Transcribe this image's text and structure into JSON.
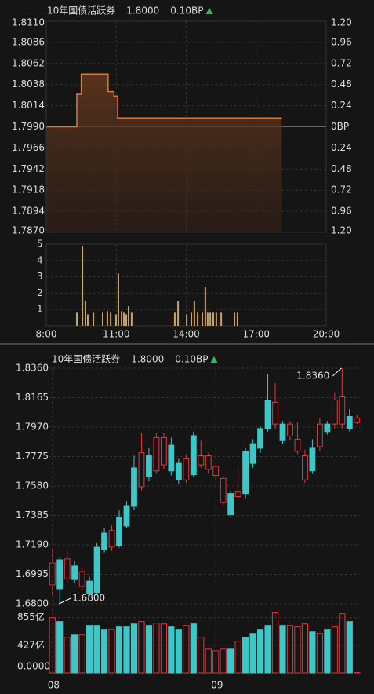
{
  "chart_data": [
    {
      "type": "line",
      "title": "10年国债活跃券",
      "price": "1.8000",
      "change": "0.10BP",
      "color": "#e0782c",
      "x": [
        8,
        9.31,
        9.31,
        9.5,
        9.5,
        10.65,
        10.65,
        10.9,
        10.9,
        11.06,
        11.06,
        18.1
      ],
      "values": [
        1.799,
        1.799,
        1.8027,
        1.8027,
        1.805,
        1.805,
        1.803,
        1.803,
        1.8025,
        1.8025,
        1.8,
        1.8
      ],
      "xlim": [
        8,
        20
      ],
      "ylim": [
        1.787,
        1.811
      ],
      "yticks": [
        {
          "value": 1.787,
          "label": "1.7870"
        },
        {
          "value": 1.7894,
          "label": "1.7894"
        },
        {
          "value": 1.7918,
          "label": "1.7918"
        },
        {
          "value": 1.7942,
          "label": "1.7942"
        },
        {
          "value": 1.7966,
          "label": "1.7966"
        },
        {
          "value": 1.799,
          "label": "1.7990"
        },
        {
          "value": 1.8014,
          "label": "1.8014"
        },
        {
          "value": 1.8038,
          "label": "1.8038"
        },
        {
          "value": 1.8062,
          "label": "1.8062"
        },
        {
          "value": 1.8086,
          "label": "1.8086"
        },
        {
          "value": 1.811,
          "label": "1.8110"
        }
      ],
      "y2lim": [
        -1.2,
        1.2
      ],
      "y2ticks": [
        {
          "value": -1.2,
          "label": "1.20"
        },
        {
          "value": -0.96,
          "label": "0.96"
        },
        {
          "value": -0.72,
          "label": "0.72"
        },
        {
          "value": -0.48,
          "label": "0.48"
        },
        {
          "value": -0.24,
          "label": "0.24"
        },
        {
          "value": 0,
          "label": "0BP"
        },
        {
          "value": 0.24,
          "label": "0.24"
        },
        {
          "value": 0.48,
          "label": "0.48"
        },
        {
          "value": 0.72,
          "label": "0.72"
        },
        {
          "value": 0.96,
          "label": "0.96"
        },
        {
          "value": 1.2,
          "label": "1.20"
        }
      ],
      "grid": true
    },
    {
      "type": "bar",
      "color": "#c9a46a",
      "x": [
        9.31,
        9.55,
        9.68,
        9.78,
        10.02,
        10.42,
        10.62,
        10.76,
        10.99,
        11.09,
        11.23,
        11.33,
        11.43,
        11.53,
        11.66,
        13.51,
        13.65,
        14.02,
        14.22,
        14.35,
        14.49,
        14.69,
        14.82,
        14.92,
        15.03,
        15.16,
        15.29,
        15.5,
        16.07,
        16.2
      ],
      "values": [
        0.8,
        4.9,
        1.5,
        0.7,
        0.8,
        0.8,
        0.9,
        0.8,
        0.7,
        3.2,
        0.9,
        0.8,
        0.7,
        1.2,
        0.8,
        0.8,
        1.5,
        0.7,
        0.8,
        1.5,
        0.8,
        0.8,
        2.4,
        0.8,
        0.8,
        0.8,
        0.8,
        0.8,
        0.8,
        0.8
      ],
      "xlim": [
        8,
        20
      ],
      "xticks": [
        {
          "value": 8,
          "label": "8:00"
        },
        {
          "value": 11,
          "label": "11:00"
        },
        {
          "value": 14,
          "label": "14:00"
        },
        {
          "value": 17,
          "label": "17:00"
        },
        {
          "value": 20,
          "label": "20:00"
        }
      ],
      "ylim": [
        0,
        5
      ],
      "yticks": [
        1,
        2,
        3,
        4,
        5
      ],
      "grid": true
    },
    {
      "type": "candlestick",
      "title": "10年国债活跃券",
      "price": "1.8000",
      "change": "0.10BP",
      "up_color": "#e8333a",
      "down_color": "#3cc8c8",
      "categories": [
        "08",
        null,
        null,
        null,
        null,
        null,
        null,
        null,
        null,
        null,
        null,
        null,
        null,
        null,
        null,
        null,
        null,
        null,
        null,
        null,
        null,
        null,
        "09",
        null,
        null,
        null,
        null,
        null,
        null,
        null,
        null,
        null,
        null,
        null,
        null,
        null,
        null,
        null,
        null,
        null,
        null,
        null
      ],
      "open": [
        1.6925,
        1.7091,
        1.6965,
        1.705,
        1.6914,
        1.695,
        1.7174,
        1.7268,
        1.7175,
        1.737,
        1.745,
        1.77,
        1.7575,
        1.778,
        1.768,
        1.772,
        1.785,
        1.773,
        1.762,
        1.7913,
        1.772,
        1.769,
        1.765,
        1.747,
        1.753,
        1.751,
        1.781,
        1.786,
        1.796,
        1.8145,
        1.799,
        1.799,
        1.791,
        1.781,
        1.762,
        1.783,
        1.784,
        1.799,
        1.799,
        1.799,
        1.804,
        1.8
      ],
      "high": [
        1.7159,
        1.711,
        1.715,
        1.708,
        1.704,
        1.698,
        1.72,
        1.73,
        1.732,
        1.742,
        1.748,
        1.778,
        1.793,
        1.783,
        1.793,
        1.793,
        1.79,
        1.776,
        1.779,
        1.794,
        1.788,
        1.78,
        1.772,
        1.765,
        1.755,
        1.77,
        1.783,
        1.789,
        1.798,
        1.832,
        1.826,
        1.801,
        1.801,
        1.8,
        1.782,
        1.789,
        1.803,
        1.801,
        1.82,
        1.836,
        1.809,
        1.805
      ],
      "low": [
        1.6847,
        1.68,
        1.694,
        1.694,
        1.689,
        1.685,
        1.686,
        1.714,
        1.715,
        1.717,
        1.73,
        1.742,
        1.755,
        1.761,
        1.766,
        1.769,
        1.765,
        1.759,
        1.76,
        1.764,
        1.77,
        1.766,
        1.762,
        1.745,
        1.737,
        1.749,
        1.75,
        1.77,
        1.78,
        1.794,
        1.796,
        1.786,
        1.788,
        1.779,
        1.76,
        1.766,
        1.781,
        1.792,
        1.796,
        1.796,
        1.794,
        1.799
      ],
      "close": [
        1.707,
        1.6899,
        1.7097,
        1.696,
        1.7013,
        1.687,
        1.6875,
        1.716,
        1.7285,
        1.7185,
        1.7315,
        1.7445,
        1.78,
        1.764,
        1.79,
        1.79,
        1.768,
        1.762,
        1.776,
        1.7655,
        1.778,
        1.778,
        1.771,
        1.763,
        1.739,
        1.754,
        1.753,
        1.773,
        1.783,
        1.796,
        1.8135,
        1.788,
        1.799,
        1.789,
        1.778,
        1.768,
        1.799,
        1.794,
        1.815,
        1.817,
        1.796,
        1.803
      ],
      "annotations": [
        {
          "text": "1.8360",
          "value": 1.836
        },
        {
          "text": "1.6800",
          "value": 1.68
        }
      ],
      "ylim": [
        1.68,
        1.836
      ],
      "yticks": [
        {
          "value": 1.68,
          "label": "1.6800"
        },
        {
          "value": 1.6995,
          "label": "1.6995"
        },
        {
          "value": 1.719,
          "label": "1.7190"
        },
        {
          "value": 1.7385,
          "label": "1.7385"
        },
        {
          "value": 1.758,
          "label": "1.7580"
        },
        {
          "value": 1.7775,
          "label": "1.7775"
        },
        {
          "value": 1.797,
          "label": "1.7970"
        },
        {
          "value": 1.8165,
          "label": "1.8165"
        },
        {
          "value": 1.836,
          "label": "1.8360"
        }
      ],
      "grid": true
    },
    {
      "type": "bar",
      "values": [
        855,
        794,
        550,
        586,
        586,
        733,
        733,
        672,
        672,
        709,
        709,
        757,
        794,
        733,
        770,
        757,
        709,
        672,
        733,
        757,
        550,
        367,
        342,
        367,
        367,
        489,
        550,
        611,
        672,
        733,
        930,
        733,
        733,
        709,
        757,
        635,
        611,
        672,
        709,
        915,
        794,
        5
      ],
      "ylim": [
        0,
        960
      ],
      "yticks": [
        {
          "value": 0,
          "label": "0.0000"
        },
        {
          "value": 427,
          "label": "427亿"
        },
        {
          "value": 855,
          "label": "855亿"
        }
      ],
      "grid": true
    }
  ]
}
